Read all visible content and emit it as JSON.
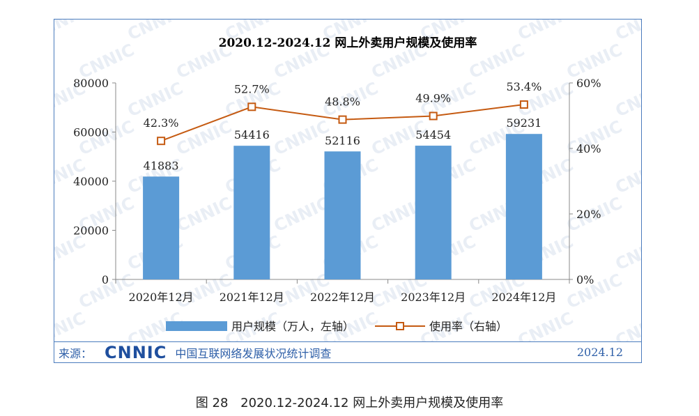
{
  "chart_data": {
    "type": "bar",
    "title": "2020.12-2024.12 网上外卖用户规模及使用率",
    "categories": [
      "2020年12月",
      "2021年12月",
      "2022年12月",
      "2023年12月",
      "2024年12月"
    ],
    "series": [
      {
        "name": "用户规模（万人，左轴）",
        "type": "bar",
        "axis": "left",
        "color": "#5b9bd5",
        "values": [
          41883,
          54416,
          52116,
          54454,
          59231
        ]
      },
      {
        "name": "使用率（右轴）",
        "type": "line",
        "axis": "right",
        "color": "#c55a11",
        "values": [
          42.3,
          52.7,
          48.8,
          49.9,
          53.4
        ],
        "labels": [
          "42.3%",
          "52.7%",
          "48.8%",
          "49.9%",
          "53.4%"
        ]
      }
    ],
    "y_left": {
      "min": 0,
      "max": 80000,
      "ticks": [
        0,
        20000,
        40000,
        60000,
        80000
      ]
    },
    "y_right": {
      "min": 0,
      "max": 60,
      "ticks": [
        "0%",
        "20%",
        "40%",
        "60%"
      ]
    },
    "legend_position": "bottom",
    "grid": false
  },
  "watermark": "CNNIC",
  "source": {
    "label": "来源：",
    "logo": "CNNIC",
    "org": "中国互联网络发展状况统计调查",
    "date": "2024.12"
  },
  "caption": {
    "figure_no": "图 28",
    "title": "2020.12-2024.12 网上外卖用户规模及使用率"
  }
}
